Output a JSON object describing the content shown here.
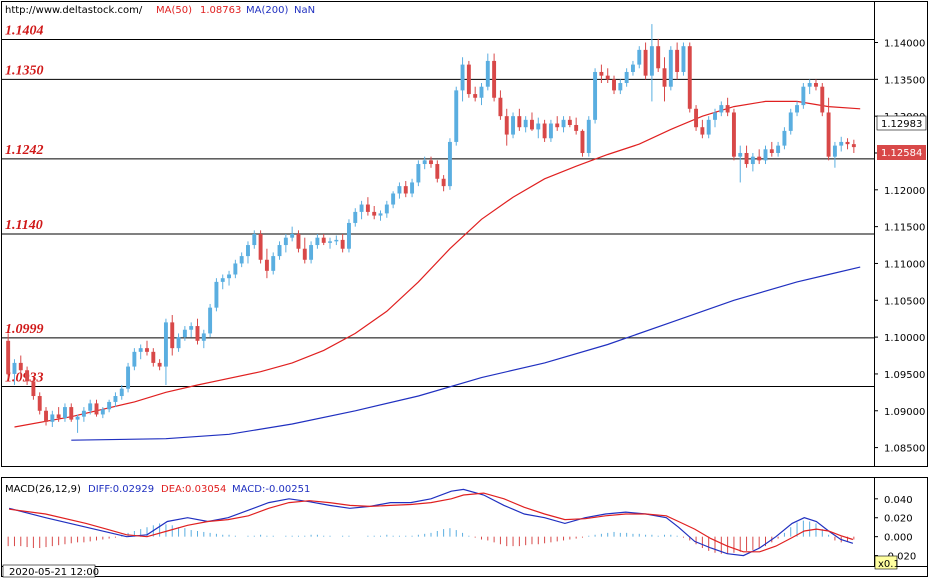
{
  "header": {
    "url": "http://www.deltastock.com/",
    "ma50_label": "MA(50)",
    "ma50_value": "1.08763",
    "ma200_label": "MA(200)",
    "ma200_value": "NaN"
  },
  "macd_header": {
    "title": "MACD(26,12,9)",
    "diff": "DIFF:0.02929",
    "dea": "DEA:0.03054",
    "macd": "MACD:-0.00251"
  },
  "price_axis": {
    "ticks": [
      "1.14000",
      "1.13500",
      "1.13000",
      "1.12500",
      "1.12000",
      "1.11500",
      "1.11000",
      "1.10500",
      "1.10000",
      "1.09500",
      "1.09000",
      "1.08500"
    ],
    "tick_values": [
      1.14,
      1.135,
      1.13,
      1.125,
      1.12,
      1.115,
      1.11,
      1.105,
      1.1,
      1.095,
      1.09,
      1.085
    ],
    "last_price_badge": "1.12584",
    "prev_price_badge": "1.12983",
    "range": [
      1.0825,
      1.1455
    ]
  },
  "macd_axis": {
    "ticks": [
      "0.040",
      "0.020",
      "0.000",
      "-0.020"
    ],
    "tick_values": [
      0.04,
      0.02,
      0.0,
      -0.02
    ],
    "range": [
      -0.031,
      0.062
    ]
  },
  "levels": [
    {
      "label": "1.1404",
      "value": 1.1404
    },
    {
      "label": "1.1350",
      "value": 1.135
    },
    {
      "label": "1.1242",
      "value": 1.1242
    },
    {
      "label": "1.1140",
      "value": 1.114
    },
    {
      "label": "1.0999",
      "value": 1.0999
    },
    {
      "label": "1.0933",
      "value": 1.0933
    }
  ],
  "footer": {
    "date_label": "2020-05-21 12:00",
    "zoom_label": "x0.1"
  },
  "colors": {
    "bull": "#5aaee0",
    "bear": "#d84848",
    "ma50": "#e02020",
    "ma200": "#2030c0",
    "level_line": "#000000",
    "badge_bg": "#d84848"
  },
  "chart_data": {
    "type": "candlestick",
    "title": "",
    "ylabel": "",
    "candles": [
      [
        1.0995,
        1.1005,
        1.0945,
        1.095
      ],
      [
        1.095,
        1.097,
        1.0935,
        1.0965
      ],
      [
        1.0965,
        1.0975,
        1.0945,
        1.0955
      ],
      [
        1.0955,
        1.096,
        1.0935,
        1.094
      ],
      [
        1.094,
        1.0945,
        1.0915,
        1.092
      ],
      [
        1.092,
        1.0925,
        1.0895,
        1.09
      ],
      [
        1.09,
        1.0905,
        1.088,
        1.0885
      ],
      [
        1.0885,
        1.09,
        1.0878,
        1.0895
      ],
      [
        1.0895,
        1.0905,
        1.0885,
        1.089
      ],
      [
        1.089,
        1.091,
        1.0885,
        1.0905
      ],
      [
        1.0905,
        1.091,
        1.0885,
        1.0888
      ],
      [
        1.0888,
        1.0895,
        1.087,
        1.0892
      ],
      [
        1.0892,
        1.0905,
        1.0885,
        1.09
      ],
      [
        1.09,
        1.0915,
        1.0895,
        1.091
      ],
      [
        1.091,
        1.0915,
        1.0892,
        1.0895
      ],
      [
        1.0895,
        1.0905,
        1.089,
        1.0902
      ],
      [
        1.0902,
        1.0915,
        1.0898,
        1.0912
      ],
      [
        1.0912,
        1.0925,
        1.0905,
        1.092
      ],
      [
        1.092,
        1.0935,
        1.0915,
        1.093
      ],
      [
        1.093,
        1.0965,
        1.0925,
        1.096
      ],
      [
        1.096,
        1.0985,
        1.0955,
        1.098
      ],
      [
        1.098,
        1.099,
        1.097,
        1.0985
      ],
      [
        1.0985,
        1.0995,
        1.0975,
        1.098
      ],
      [
        1.098,
        1.0985,
        1.096,
        1.0965
      ],
      [
        1.0965,
        1.097,
        1.0955,
        1.096
      ],
      [
        1.096,
        1.1025,
        1.0935,
        1.102
      ],
      [
        1.102,
        1.103,
        1.0975,
        1.0985
      ],
      [
        1.0985,
        1.1005,
        1.098,
        1.1
      ],
      [
        1.1,
        1.1015,
        1.0995,
        1.101
      ],
      [
        1.101,
        1.102,
        1.1,
        1.1015
      ],
      [
        1.1015,
        1.1025,
        1.099,
        1.0995
      ],
      [
        1.0995,
        1.101,
        1.0985,
        1.1005
      ],
      [
        1.1005,
        1.1045,
        1.1,
        1.104
      ],
      [
        1.104,
        1.108,
        1.1035,
        1.1075
      ],
      [
        1.1075,
        1.1085,
        1.1065,
        1.108
      ],
      [
        1.108,
        1.109,
        1.107,
        1.1085
      ],
      [
        1.1085,
        1.1105,
        1.108,
        1.11
      ],
      [
        1.11,
        1.1115,
        1.1095,
        1.111
      ],
      [
        1.111,
        1.113,
        1.11,
        1.1125
      ],
      [
        1.1125,
        1.1145,
        1.112,
        1.114
      ],
      [
        1.114,
        1.1145,
        1.11,
        1.1105
      ],
      [
        1.1105,
        1.112,
        1.108,
        1.109
      ],
      [
        1.109,
        1.1115,
        1.1085,
        1.111
      ],
      [
        1.111,
        1.113,
        1.1105,
        1.1125
      ],
      [
        1.1125,
        1.114,
        1.1115,
        1.1135
      ],
      [
        1.1135,
        1.115,
        1.113,
        1.114
      ],
      [
        1.114,
        1.1145,
        1.1115,
        1.112
      ],
      [
        1.112,
        1.1135,
        1.11,
        1.1105
      ],
      [
        1.1105,
        1.113,
        1.11,
        1.1125
      ],
      [
        1.1125,
        1.114,
        1.112,
        1.1135
      ],
      [
        1.1135,
        1.114,
        1.1125,
        1.1128
      ],
      [
        1.1128,
        1.1135,
        1.112,
        1.113
      ],
      [
        1.113,
        1.1138,
        1.1125,
        1.1132
      ],
      [
        1.1132,
        1.114,
        1.1115,
        1.112
      ],
      [
        1.112,
        1.116,
        1.1115,
        1.1155
      ],
      [
        1.1155,
        1.1175,
        1.115,
        1.117
      ],
      [
        1.117,
        1.1185,
        1.116,
        1.118
      ],
      [
        1.118,
        1.119,
        1.1165,
        1.117
      ],
      [
        1.117,
        1.1178,
        1.116,
        1.1165
      ],
      [
        1.1165,
        1.1172,
        1.1158,
        1.1168
      ],
      [
        1.1168,
        1.1185,
        1.1162,
        1.118
      ],
      [
        1.118,
        1.1198,
        1.1175,
        1.1195
      ],
      [
        1.1195,
        1.121,
        1.1188,
        1.1205
      ],
      [
        1.1205,
        1.1212,
        1.119,
        1.1195
      ],
      [
        1.1195,
        1.1215,
        1.119,
        1.121
      ],
      [
        1.121,
        1.124,
        1.1205,
        1.1235
      ],
      [
        1.1235,
        1.1245,
        1.1228,
        1.124
      ],
      [
        1.124,
        1.1245,
        1.123,
        1.1235
      ],
      [
        1.1235,
        1.124,
        1.121,
        1.1215
      ],
      [
        1.1215,
        1.122,
        1.1198,
        1.1205
      ],
      [
        1.1205,
        1.127,
        1.12,
        1.1265
      ],
      [
        1.1265,
        1.134,
        1.126,
        1.1335
      ],
      [
        1.1335,
        1.138,
        1.132,
        1.137
      ],
      [
        1.137,
        1.1375,
        1.1325,
        1.133
      ],
      [
        1.133,
        1.134,
        1.132,
        1.1325
      ],
      [
        1.1325,
        1.1345,
        1.1315,
        1.134
      ],
      [
        1.134,
        1.1385,
        1.1335,
        1.1375
      ],
      [
        1.1375,
        1.1385,
        1.132,
        1.1325
      ],
      [
        1.1325,
        1.1335,
        1.1295,
        1.13
      ],
      [
        1.13,
        1.131,
        1.126,
        1.1275
      ],
      [
        1.1275,
        1.1305,
        1.127,
        1.13
      ],
      [
        1.13,
        1.131,
        1.128,
        1.1285
      ],
      [
        1.1285,
        1.13,
        1.1278,
        1.1295
      ],
      [
        1.1295,
        1.1305,
        1.128,
        1.1282
      ],
      [
        1.1282,
        1.1298,
        1.127,
        1.129
      ],
      [
        1.129,
        1.1295,
        1.1265,
        1.127
      ],
      [
        1.127,
        1.1295,
        1.1265,
        1.129
      ],
      [
        1.129,
        1.13,
        1.128,
        1.1285
      ],
      [
        1.1285,
        1.13,
        1.1278,
        1.1295
      ],
      [
        1.1295,
        1.13,
        1.1285,
        1.1288
      ],
      [
        1.1288,
        1.1298,
        1.1275,
        1.128
      ],
      [
        1.128,
        1.1282,
        1.1245,
        1.125
      ],
      [
        1.125,
        1.13,
        1.1245,
        1.1295
      ],
      [
        1.1295,
        1.1365,
        1.129,
        1.136
      ],
      [
        1.136,
        1.137,
        1.1345,
        1.1355
      ],
      [
        1.1355,
        1.1365,
        1.1345,
        1.135
      ],
      [
        1.135,
        1.1355,
        1.133,
        1.1335
      ],
      [
        1.1335,
        1.135,
        1.133,
        1.1345
      ],
      [
        1.1345,
        1.1365,
        1.134,
        1.136
      ],
      [
        1.136,
        1.1375,
        1.1355,
        1.137
      ],
      [
        1.137,
        1.1395,
        1.1365,
        1.139
      ],
      [
        1.139,
        1.14,
        1.135,
        1.1355
      ],
      [
        1.1355,
        1.1425,
        1.132,
        1.1395
      ],
      [
        1.1395,
        1.1405,
        1.136,
        1.1365
      ],
      [
        1.1365,
        1.138,
        1.132,
        1.134
      ],
      [
        1.134,
        1.1395,
        1.1335,
        1.139
      ],
      [
        1.139,
        1.14,
        1.135,
        1.136
      ],
      [
        1.136,
        1.14,
        1.1355,
        1.1395
      ],
      [
        1.1395,
        1.14,
        1.1305,
        1.131
      ],
      [
        1.131,
        1.1315,
        1.128,
        1.1285
      ],
      [
        1.1285,
        1.1295,
        1.127,
        1.1275
      ],
      [
        1.1275,
        1.13,
        1.127,
        1.1295
      ],
      [
        1.1295,
        1.131,
        1.1285,
        1.1305
      ],
      [
        1.1305,
        1.132,
        1.13,
        1.1315
      ],
      [
        1.1315,
        1.1325,
        1.13,
        1.1305
      ],
      [
        1.1305,
        1.131,
        1.124,
        1.1245
      ],
      [
        1.1245,
        1.126,
        1.121,
        1.125
      ],
      [
        1.125,
        1.126,
        1.123,
        1.1235
      ],
      [
        1.1235,
        1.125,
        1.1225,
        1.1245
      ],
      [
        1.1245,
        1.1255,
        1.1235,
        1.124
      ],
      [
        1.124,
        1.126,
        1.1235,
        1.1255
      ],
      [
        1.1255,
        1.1265,
        1.1245,
        1.125
      ],
      [
        1.125,
        1.1265,
        1.1245,
        1.126
      ],
      [
        1.126,
        1.1285,
        1.1255,
        1.128
      ],
      [
        1.128,
        1.131,
        1.1275,
        1.1305
      ],
      [
        1.1305,
        1.132,
        1.13,
        1.1315
      ],
      [
        1.1315,
        1.1345,
        1.131,
        1.134
      ],
      [
        1.134,
        1.135,
        1.133,
        1.1345
      ],
      [
        1.1345,
        1.135,
        1.1335,
        1.134
      ],
      [
        1.134,
        1.1345,
        1.13,
        1.1305
      ],
      [
        1.1305,
        1.1325,
        1.124,
        1.1245
      ],
      [
        1.1245,
        1.1265,
        1.123,
        1.126
      ],
      [
        1.126,
        1.1272,
        1.1252,
        1.1265
      ],
      [
        1.1265,
        1.127,
        1.1255,
        1.1262
      ],
      [
        1.1262,
        1.1268,
        1.125,
        1.1258
      ]
    ],
    "ma50": [
      [
        1,
        1.0878
      ],
      [
        10,
        1.0892
      ],
      [
        20,
        1.0912
      ],
      [
        25,
        1.0925
      ],
      [
        30,
        1.0935
      ],
      [
        40,
        1.0953
      ],
      [
        45,
        1.0965
      ],
      [
        50,
        1.0982
      ],
      [
        55,
        1.1005
      ],
      [
        60,
        1.1035
      ],
      [
        65,
        1.1075
      ],
      [
        70,
        1.112
      ],
      [
        75,
        1.116
      ],
      [
        80,
        1.119
      ],
      [
        85,
        1.1215
      ],
      [
        90,
        1.1232
      ],
      [
        95,
        1.1248
      ],
      [
        100,
        1.1262
      ],
      [
        105,
        1.1282
      ],
      [
        110,
        1.13
      ],
      [
        115,
        1.1313
      ],
      [
        120,
        1.132
      ],
      [
        125,
        1.132
      ],
      [
        130,
        1.1313
      ],
      [
        135,
        1.131
      ]
    ],
    "ma200": [
      [
        10,
        1.086
      ],
      [
        25,
        1.0862
      ],
      [
        35,
        1.0868
      ],
      [
        45,
        1.0882
      ],
      [
        55,
        1.09
      ],
      [
        65,
        1.092
      ],
      [
        75,
        1.0945
      ],
      [
        85,
        1.0965
      ],
      [
        95,
        1.099
      ],
      [
        105,
        1.102
      ],
      [
        115,
        1.105
      ],
      [
        125,
        1.1075
      ],
      [
        130,
        1.1085
      ],
      [
        135,
        1.1095
      ]
    ],
    "macd_histogram": [
      -0.01,
      -0.01,
      -0.01,
      -0.011,
      -0.012,
      -0.012,
      -0.011,
      -0.01,
      -0.009,
      -0.008,
      -0.007,
      -0.006,
      -0.006,
      -0.005,
      -0.004,
      -0.003,
      -0.002,
      -0.001,
      0.002,
      0.004,
      0.006,
      0.008,
      0.01,
      0.012,
      0.014,
      0.013,
      0.012,
      0.01,
      0.009,
      0.007,
      0.006,
      0.005,
      0.004,
      0.003,
      0.002,
      0.002,
      0.001,
      0.0,
      0.001,
      0.001,
      0.002,
      0.001,
      0.001,
      0.0,
      0.001,
      0.001,
      0.001,
      0.001,
      0.002,
      0.002,
      0.001,
      0.001,
      0.0,
      0.001,
      0.001,
      0.0,
      0.0,
      0.001,
      0.001,
      0.001,
      0.002,
      0.001,
      0.001,
      0.001,
      0.001,
      0.002,
      0.003,
      0.004,
      0.006,
      0.008,
      0.009,
      0.007,
      0.004,
      0.001,
      -0.001,
      -0.003,
      -0.004,
      -0.006,
      -0.008,
      -0.01,
      -0.01,
      -0.01,
      -0.009,
      -0.008,
      -0.008,
      -0.007,
      -0.006,
      -0.005,
      -0.004,
      -0.003,
      -0.002,
      -0.001,
      0.001,
      0.002,
      0.003,
      0.004,
      0.005,
      0.004,
      0.004,
      0.003,
      0.003,
      0.002,
      0.002,
      0.001,
      0.002,
      0.002,
      0.001,
      -0.001,
      -0.004,
      -0.008,
      -0.012,
      -0.015,
      -0.017,
      -0.018,
      -0.018,
      -0.017,
      -0.016,
      -0.015,
      -0.014,
      -0.012,
      -0.01,
      -0.006,
      -0.002,
      0.004,
      0.01,
      0.015,
      0.017,
      0.016,
      0.014,
      0.008,
      0.002,
      -0.004,
      -0.006,
      -0.005,
      -0.003
    ],
    "diff_line": [
      [
        1,
        0.03
      ],
      [
        10,
        0.02
      ],
      [
        20,
        0.01
      ],
      [
        25,
        0.005
      ],
      [
        30,
        0.0
      ],
      [
        35,
        0.002
      ],
      [
        40,
        0.016
      ],
      [
        45,
        0.02
      ],
      [
        50,
        0.016
      ],
      [
        55,
        0.02
      ],
      [
        60,
        0.028
      ],
      [
        65,
        0.036
      ],
      [
        70,
        0.04
      ],
      [
        75,
        0.037
      ],
      [
        80,
        0.033
      ],
      [
        85,
        0.03
      ],
      [
        90,
        0.032
      ],
      [
        95,
        0.036
      ],
      [
        100,
        0.036
      ],
      [
        105,
        0.04
      ],
      [
        110,
        0.048
      ],
      [
        113,
        0.05
      ],
      [
        118,
        0.044
      ],
      [
        123,
        0.033
      ],
      [
        128,
        0.024
      ],
      [
        133,
        0.02
      ],
      [
        138,
        0.014
      ],
      [
        143,
        0.02
      ],
      [
        148,
        0.024
      ],
      [
        153,
        0.026
      ],
      [
        158,
        0.024
      ],
      [
        163,
        0.02
      ],
      [
        166,
        0.01
      ],
      [
        170,
        -0.005
      ],
      [
        174,
        -0.012
      ],
      [
        178,
        -0.018
      ],
      [
        182,
        -0.02
      ],
      [
        186,
        -0.012
      ],
      [
        190,
        0.0
      ],
      [
        194,
        0.014
      ],
      [
        197,
        0.02
      ],
      [
        200,
        0.016
      ],
      [
        203,
        0.006
      ],
      [
        206,
        -0.003
      ],
      [
        209,
        -0.007
      ]
    ],
    "dea_line": [
      [
        1,
        0.029
      ],
      [
        10,
        0.024
      ],
      [
        20,
        0.014
      ],
      [
        25,
        0.008
      ],
      [
        30,
        0.002
      ],
      [
        35,
        0.0
      ],
      [
        40,
        0.006
      ],
      [
        45,
        0.012
      ],
      [
        50,
        0.016
      ],
      [
        55,
        0.018
      ],
      [
        60,
        0.022
      ],
      [
        65,
        0.03
      ],
      [
        70,
        0.036
      ],
      [
        75,
        0.038
      ],
      [
        80,
        0.036
      ],
      [
        85,
        0.033
      ],
      [
        90,
        0.032
      ],
      [
        95,
        0.033
      ],
      [
        100,
        0.034
      ],
      [
        105,
        0.036
      ],
      [
        110,
        0.04
      ],
      [
        113,
        0.044
      ],
      [
        118,
        0.046
      ],
      [
        123,
        0.04
      ],
      [
        128,
        0.031
      ],
      [
        133,
        0.024
      ],
      [
        138,
        0.018
      ],
      [
        143,
        0.019
      ],
      [
        148,
        0.022
      ],
      [
        153,
        0.024
      ],
      [
        158,
        0.024
      ],
      [
        163,
        0.022
      ],
      [
        166,
        0.016
      ],
      [
        170,
        0.008
      ],
      [
        174,
        -0.002
      ],
      [
        178,
        -0.01
      ],
      [
        182,
        -0.016
      ],
      [
        186,
        -0.016
      ],
      [
        190,
        -0.01
      ],
      [
        194,
        -0.001
      ],
      [
        197,
        0.006
      ],
      [
        200,
        0.008
      ],
      [
        203,
        0.006
      ],
      [
        206,
        0.001
      ],
      [
        209,
        -0.003
      ]
    ]
  }
}
